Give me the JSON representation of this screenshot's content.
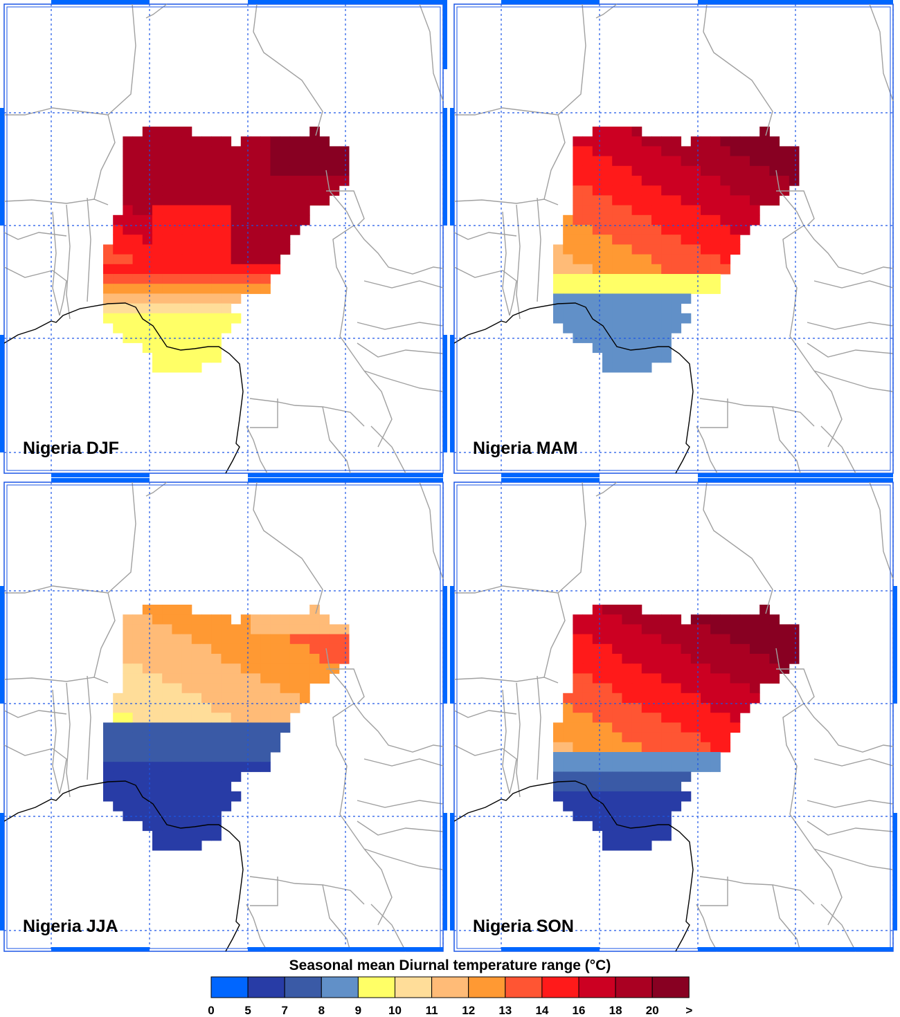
{
  "colorbar": {
    "title": "Seasonal mean Diurnal temperature range (°C)",
    "colors": [
      "#0066ff",
      "#283ca6",
      "#3a5aa6",
      "#6190c8",
      "#ffff66",
      "#ffdd99",
      "#ffbb77",
      "#ff9933",
      "#ff5533",
      "#ff1a1a",
      "#cc0022",
      "#aa0022",
      "#880022"
    ],
    "tick_labels": [
      "0",
      "5",
      "7",
      "8",
      "9",
      "10",
      "11",
      "12",
      "13",
      "14",
      "16",
      "18",
      "20",
      ">"
    ]
  },
  "panels": [
    {
      "label": "Nigeria DJF",
      "season": "DJF"
    },
    {
      "label": "Nigeria MAM",
      "season": "MAM"
    },
    {
      "label": "Nigeria JJA",
      "season": "JJA"
    },
    {
      "label": "Nigeria SON",
      "season": "SON"
    }
  ],
  "colors": {
    "grid": "#1a55e6",
    "frame": "#0066ff",
    "borders": "#a0a0a0",
    "coast": "#000000"
  }
}
